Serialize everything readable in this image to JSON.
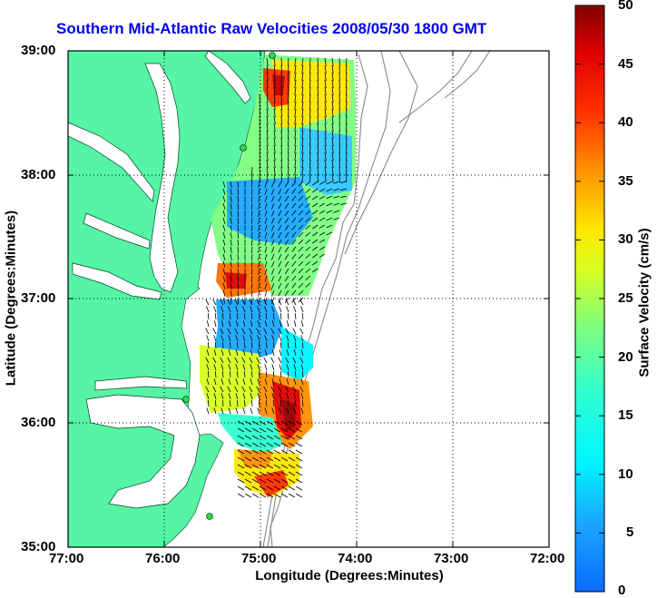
{
  "title": "Southern Mid-Atlantic Raw Velocities 2008/05/30 1800 GMT",
  "xlabel": "Longitude (Degrees:Minutes)",
  "ylabel": "Latitude (Degrees:Minutes)",
  "x_ticks": [
    "77:00",
    "76:00",
    "75:00",
    "74:00",
    "73:00",
    "72:00"
  ],
  "y_ticks": [
    "39:00",
    "38:00",
    "37:00",
    "36:00",
    "35:00"
  ],
  "colorbar": {
    "label": "Surface Velocity (cm/s)",
    "ticks": [
      "50",
      "45",
      "40",
      "35",
      "30",
      "25",
      "20",
      "15",
      "10",
      "5",
      "0"
    ],
    "min": 0,
    "max": 50
  },
  "colors": {
    "land": "#55f5a5",
    "title": "#0000ee",
    "station": "#22dd44"
  }
}
